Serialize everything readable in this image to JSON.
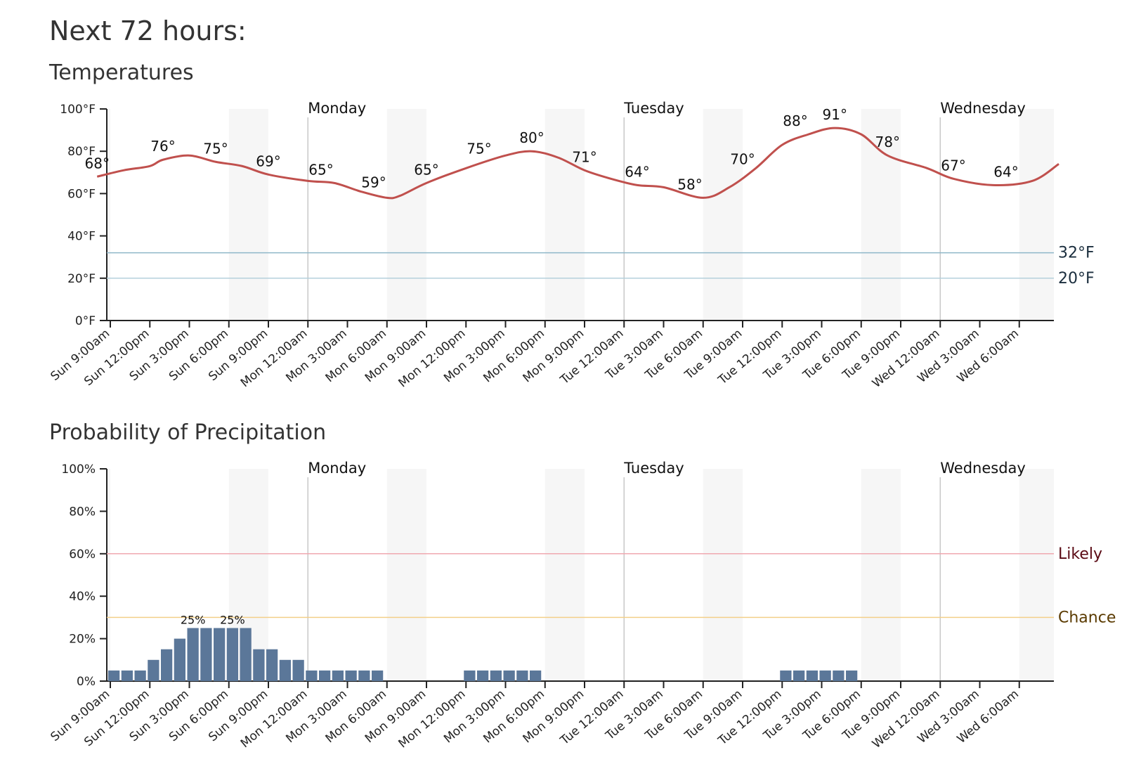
{
  "page": {
    "title": "Next 72 hours:",
    "temp_title": "Temperatures",
    "pop_title": "Probability of Precipitation"
  },
  "chart_data": [
    {
      "type": "line",
      "title": "Temperatures",
      "x_start": "Sun 9:00am",
      "x_tick_labels": [
        "Sun 9:00am",
        "Sun 12:00pm",
        "Sun 3:00pm",
        "Sun 6:00pm",
        "Sun 9:00pm",
        "Mon 12:00am",
        "Mon 3:00am",
        "Mon 6:00am",
        "Mon 9:00am",
        "Mon 12:00pm",
        "Mon 3:00pm",
        "Mon 6:00pm",
        "Mon 9:00pm",
        "Tue 12:00am",
        "Tue 3:00am",
        "Tue 6:00am",
        "Tue 9:00am",
        "Tue 12:00pm",
        "Tue 3:00pm",
        "Tue 6:00pm",
        "Tue 9:00pm",
        "Wed 12:00am",
        "Wed 3:00am",
        "Wed 6:00am"
      ],
      "y_ticks": [
        "0°F",
        "20°F",
        "40°F",
        "60°F",
        "80°F",
        "100°F"
      ],
      "ylim": [
        0,
        100
      ],
      "day_labels": [
        "Monday",
        "Tuesday",
        "Wednesday"
      ],
      "reference_lines": [
        {
          "label": "32°F",
          "value": 32,
          "color": "#8fb7c9"
        },
        {
          "label": "20°F",
          "value": 20,
          "color": "#b5d0dc"
        }
      ],
      "series": [
        {
          "color": "#c0504d",
          "points": [
            {
              "x": "Sun 8:00am",
              "y": 68
            },
            {
              "x": "Sun 10:00am",
              "y": 71
            },
            {
              "x": "Sun 12:00pm",
              "y": 73
            },
            {
              "x": "Sun 1:00pm",
              "y": 76
            },
            {
              "x": "Sun 3:00pm",
              "y": 78
            },
            {
              "x": "Sun 5:00pm",
              "y": 75
            },
            {
              "x": "Sun 7:00pm",
              "y": 73
            },
            {
              "x": "Sun 9:00pm",
              "y": 69
            },
            {
              "x": "Mon 12:00am",
              "y": 66
            },
            {
              "x": "Mon 2:00am",
              "y": 65
            },
            {
              "x": "Mon 4:00am",
              "y": 61
            },
            {
              "x": "Mon 6:00am",
              "y": 58
            },
            {
              "x": "Mon 7:00am",
              "y": 59
            },
            {
              "x": "Mon 9:00am",
              "y": 65
            },
            {
              "x": "Mon 12:00pm",
              "y": 72
            },
            {
              "x": "Mon 3:00pm",
              "y": 78
            },
            {
              "x": "Mon 5:00pm",
              "y": 80
            },
            {
              "x": "Mon 7:00pm",
              "y": 77
            },
            {
              "x": "Mon 9:00pm",
              "y": 71
            },
            {
              "x": "Mon 11:00pm",
              "y": 67
            },
            {
              "x": "Tue 1:00am",
              "y": 64
            },
            {
              "x": "Tue 3:00am",
              "y": 63
            },
            {
              "x": "Tue 6:00am",
              "y": 58
            },
            {
              "x": "Tue 8:00am",
              "y": 63
            },
            {
              "x": "Tue 10:00am",
              "y": 72
            },
            {
              "x": "Tue 12:00pm",
              "y": 83
            },
            {
              "x": "Tue 2:00pm",
              "y": 88
            },
            {
              "x": "Tue 4:00pm",
              "y": 91
            },
            {
              "x": "Tue 6:00pm",
              "y": 88
            },
            {
              "x": "Tue 8:00pm",
              "y": 78
            },
            {
              "x": "Tue 11:00pm",
              "y": 72
            },
            {
              "x": "Wed 1:00am",
              "y": 67
            },
            {
              "x": "Wed 4:00am",
              "y": 64
            },
            {
              "x": "Wed 7:00am",
              "y": 66
            },
            {
              "x": "Wed 9:00am",
              "y": 74
            }
          ]
        }
      ],
      "data_labels": [
        {
          "x": "Sun 8:00am",
          "y": 68,
          "label": "68°"
        },
        {
          "x": "Sun 1:00pm",
          "y": 76,
          "label": "76°"
        },
        {
          "x": "Sun 5:00pm",
          "y": 75,
          "label": "75°"
        },
        {
          "x": "Sun 9:00pm",
          "y": 69,
          "label": "69°"
        },
        {
          "x": "Mon 1:00am",
          "y": 65,
          "label": "65°"
        },
        {
          "x": "Mon 5:00am",
          "y": 59,
          "label": "59°"
        },
        {
          "x": "Mon 9:00am",
          "y": 65,
          "label": "65°"
        },
        {
          "x": "Mon 1:00pm",
          "y": 75,
          "label": "75°"
        },
        {
          "x": "Mon 5:00pm",
          "y": 80,
          "label": "80°"
        },
        {
          "x": "Mon 9:00pm",
          "y": 71,
          "label": "71°"
        },
        {
          "x": "Tue 1:00am",
          "y": 64,
          "label": "64°"
        },
        {
          "x": "Tue 5:00am",
          "y": 58,
          "label": "58°"
        },
        {
          "x": "Tue 9:00am",
          "y": 70,
          "label": "70°"
        },
        {
          "x": "Tue 1:00pm",
          "y": 88,
          "label": "88°"
        },
        {
          "x": "Tue 4:00pm",
          "y": 91,
          "label": "91°"
        },
        {
          "x": "Tue 8:00pm",
          "y": 78,
          "label": "78°"
        },
        {
          "x": "Wed 1:00am",
          "y": 67,
          "label": "67°"
        },
        {
          "x": "Wed 5:00am",
          "y": 64,
          "label": "64°"
        }
      ]
    },
    {
      "type": "bar",
      "title": "Probability of Precipitation",
      "x_start": "Sun 9:00am",
      "x_tick_labels": [
        "Sun 9:00am",
        "Sun 12:00pm",
        "Sun 3:00pm",
        "Sun 6:00pm",
        "Sun 9:00pm",
        "Mon 12:00am",
        "Mon 3:00am",
        "Mon 6:00am",
        "Mon 9:00am",
        "Mon 12:00pm",
        "Mon 3:00pm",
        "Mon 6:00pm",
        "Mon 9:00pm",
        "Tue 12:00am",
        "Tue 3:00am",
        "Tue 6:00am",
        "Tue 9:00am",
        "Tue 12:00pm",
        "Tue 3:00pm",
        "Tue 6:00pm",
        "Tue 9:00pm",
        "Wed 12:00am",
        "Wed 3:00am",
        "Wed 6:00am"
      ],
      "y_ticks": [
        "0%",
        "20%",
        "40%",
        "60%",
        "80%",
        "100%"
      ],
      "ylim": [
        0,
        100
      ],
      "day_labels": [
        "Monday",
        "Tuesday",
        "Wednesday"
      ],
      "reference_lines": [
        {
          "label": "Likely",
          "value": 60,
          "color": "#f0a8b0",
          "text_color": "#5a0a14"
        },
        {
          "label": "Chance",
          "value": 30,
          "color": "#f3cf8a",
          "text_color": "#5a3a00"
        }
      ],
      "values": [
        5,
        5,
        5,
        10,
        15,
        20,
        25,
        25,
        25,
        25,
        25,
        15,
        15,
        10,
        10,
        5,
        5,
        5,
        5,
        5,
        5,
        0,
        0,
        0,
        0,
        0,
        0,
        5,
        5,
        5,
        5,
        5,
        5,
        0,
        0,
        0,
        0,
        0,
        0,
        0,
        0,
        0,
        0,
        0,
        0,
        0,
        0,
        0,
        0,
        0,
        0,
        5,
        5,
        5,
        5,
        5,
        5
      ],
      "bar_color": "#5b7799",
      "data_labels": [
        {
          "index": 6,
          "label": "25%"
        },
        {
          "index": 9,
          "label": "25%"
        }
      ]
    }
  ]
}
